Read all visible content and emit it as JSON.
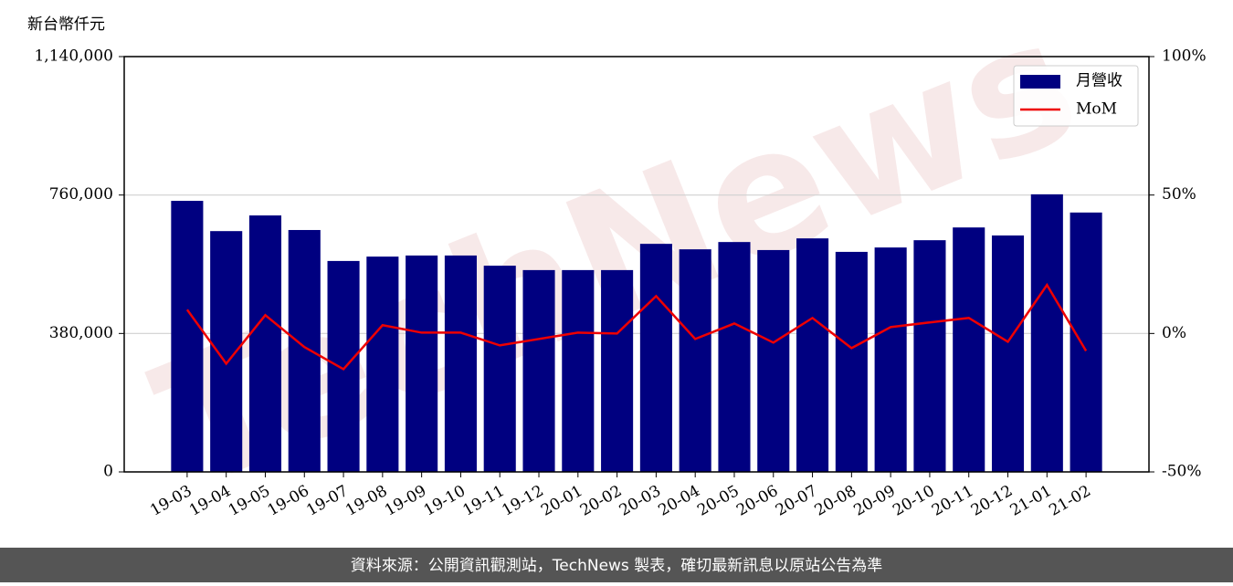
{
  "chart_data": {
    "type": "bar_line",
    "unit_label": "新台幣仟元",
    "watermark": "TechNews",
    "source": "資料來源：公開資訊觀測站，TechNews 製表，確切最新訊息以原站公告為準",
    "categories": [
      "19-03",
      "19-04",
      "19-05",
      "19-06",
      "19-07",
      "19-08",
      "19-09",
      "19-10",
      "19-11",
      "19-12",
      "20-01",
      "20-02",
      "20-03",
      "20-04",
      "20-05",
      "20-06",
      "20-07",
      "20-08",
      "20-09",
      "20-10",
      "20-11",
      "20-12",
      "21-01",
      "21-02"
    ],
    "series": [
      {
        "name": "月營收",
        "color": "#000080",
        "type": "bar",
        "values": [
          744000,
          661000,
          704000,
          664000,
          579000,
          591000,
          594000,
          594000,
          566000,
          554000,
          554000,
          554000,
          626000,
          611000,
          631000,
          609000,
          641000,
          604000,
          616000,
          636000,
          671000,
          649000,
          762000,
          712000
        ]
      },
      {
        "name": "MoM",
        "color": "#ee0000",
        "type": "line",
        "axis": "y2",
        "values": [
          8.6,
          -10.9,
          6.6,
          -4.9,
          -12.9,
          3.0,
          0.3,
          0.3,
          -4.3,
          -2.0,
          0.3,
          0,
          13.5,
          -2.0,
          3.6,
          -3.3,
          5.6,
          -5.3,
          2.3,
          4.0,
          5.6,
          -3.0,
          17.5,
          -6.3
        ]
      }
    ],
    "ylim": [
      0,
      1140000
    ],
    "yticks": [
      {
        "value": 0,
        "label": "0"
      },
      {
        "value": 380000,
        "label": "380,000"
      },
      {
        "value": 760000,
        "label": "760,000"
      },
      {
        "value": 1140000,
        "label": "1,140,000"
      }
    ],
    "y2lim": [
      -50,
      100
    ],
    "y2ticks": [
      {
        "value": -50,
        "label": "-50%"
      },
      {
        "value": 0,
        "label": "0%"
      },
      {
        "value": 50,
        "label": "50%"
      },
      {
        "value": 100,
        "label": "100%"
      }
    ],
    "grid": true,
    "legend": "upper right"
  }
}
